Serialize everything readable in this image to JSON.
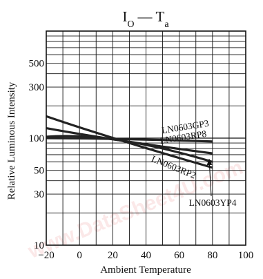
{
  "chart_data": {
    "type": "line",
    "title": {
      "main": "I",
      "sub": "O",
      "sep": "—",
      "main2": "T",
      "sub2": "a"
    },
    "xlabel": "Ambient Temperature",
    "ylabel": "Relative Luminous Intensity",
    "x_ticks": [
      -20,
      0,
      20,
      40,
      60,
      80,
      100
    ],
    "x_tick_labels": [
      "−20",
      "0",
      "20",
      "40",
      "60",
      "80",
      "100"
    ],
    "xlim": [
      -20,
      100
    ],
    "y_scale": "log",
    "ylim": [
      10,
      1000
    ],
    "y_tick_labels": [
      {
        "value": 10,
        "label": "10"
      },
      {
        "value": 30,
        "label": "30"
      },
      {
        "value": 50,
        "label": "50"
      },
      {
        "value": 100,
        "label": "100"
      },
      {
        "value": 300,
        "label": "300"
      },
      {
        "value": 500,
        "label": "500"
      }
    ],
    "grid": true,
    "series": [
      {
        "name": "LN0603GP3",
        "x": [
          -20,
          25,
          80
        ],
        "y": [
          100,
          98,
          93
        ]
      },
      {
        "name": "LN0603RP8",
        "x": [
          -20,
          25,
          80
        ],
        "y": [
          124,
          95,
          72
        ]
      },
      {
        "name": "LN0603RP2",
        "x": [
          -20,
          25,
          80
        ],
        "y": [
          160,
          95,
          53
        ]
      },
      {
        "name": "LN0603YP4",
        "x": [
          -20,
          25,
          80
        ],
        "y": [
          103,
          95,
          60
        ]
      }
    ]
  },
  "watermark": {
    "text": "www.DataSheet4U.com",
    "color": "#e05050"
  }
}
